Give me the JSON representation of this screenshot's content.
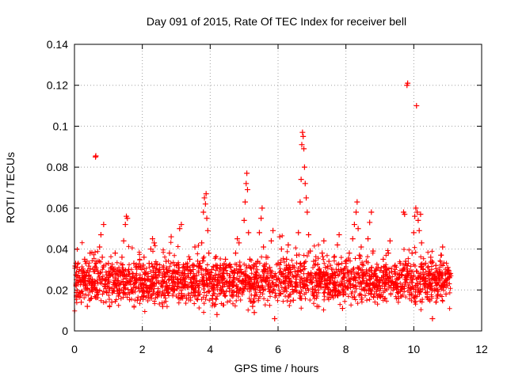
{
  "chart_data": {
    "type": "scatter",
    "title": "Day 091 of 2015, Rate Of TEC Index for receiver bell",
    "xlabel": "GPS time / hours",
    "ylabel": "ROTI / TECUs",
    "xlim": [
      0,
      12
    ],
    "ylim": [
      0,
      0.14
    ],
    "grid": true,
    "marker": "+",
    "color": "#ff0000",
    "xticks": [
      0,
      2,
      4,
      6,
      8,
      10,
      12
    ],
    "xtick_labels": [
      "0",
      "2",
      "4",
      "6",
      "8",
      "10",
      "12"
    ],
    "yticks": [
      0,
      0.02,
      0.04,
      0.06,
      0.08,
      0.1,
      0.12,
      0.14
    ],
    "ytick_labels": [
      "0",
      "0.02",
      "0.04",
      "0.06",
      "0.08",
      "0.1",
      "0.12",
      "0.14"
    ],
    "series": [
      {
        "name": "ROTI",
        "points": [
          [
            0.05,
            0.022
          ],
          [
            0.08,
            0.031
          ],
          [
            0.12,
            0.018
          ],
          [
            0.15,
            0.026
          ],
          [
            0.2,
            0.014
          ],
          [
            0.25,
            0.029
          ],
          [
            0.3,
            0.035
          ],
          [
            0.34,
            0.021
          ],
          [
            0.38,
            0.012
          ],
          [
            0.42,
            0.027
          ],
          [
            0.46,
            0.038
          ],
          [
            0.5,
            0.016
          ],
          [
            0.55,
            0.024
          ],
          [
            0.6,
            0.031
          ],
          [
            0.62,
            0.085
          ],
          [
            0.63,
            0.0855
          ],
          [
            0.66,
            0.02
          ],
          [
            0.7,
            0.028
          ],
          [
            0.74,
            0.041
          ],
          [
            0.78,
            0.047
          ],
          [
            0.82,
            0.036
          ],
          [
            0.86,
            0.052
          ],
          [
            0.9,
            0.023
          ],
          [
            0.95,
            0.019
          ],
          [
            1.0,
            0.033
          ],
          [
            1.05,
            0.027
          ],
          [
            1.1,
            0.014
          ],
          [
            1.15,
            0.03
          ],
          [
            1.2,
            0.038
          ],
          [
            1.25,
            0.022
          ],
          [
            1.3,
            0.017
          ],
          [
            1.35,
            0.029
          ],
          [
            1.4,
            0.036
          ],
          [
            1.45,
            0.044
          ],
          [
            1.5,
            0.052
          ],
          [
            1.53,
            0.056
          ],
          [
            1.56,
            0.055
          ],
          [
            1.6,
            0.03
          ],
          [
            1.65,
            0.024
          ],
          [
            1.7,
            0.02
          ],
          [
            1.75,
            0.033
          ],
          [
            1.8,
            0.027
          ],
          [
            1.85,
            0.015
          ],
          [
            1.9,
            0.025
          ],
          [
            1.95,
            0.031
          ],
          [
            2.0,
            0.019
          ],
          [
            2.05,
            0.036
          ],
          [
            2.1,
            0.028
          ],
          [
            2.15,
            0.021
          ],
          [
            2.2,
            0.033
          ],
          [
            2.25,
            0.04
          ],
          [
            2.3,
            0.045
          ],
          [
            2.35,
            0.043
          ],
          [
            2.4,
            0.026
          ],
          [
            2.45,
            0.018
          ],
          [
            2.5,
            0.03
          ],
          [
            2.55,
            0.023
          ],
          [
            2.6,
            0.012
          ],
          [
            2.65,
            0.027
          ],
          [
            2.7,
            0.034
          ],
          [
            2.75,
            0.021
          ],
          [
            2.8,
            0.038
          ],
          [
            2.85,
            0.046
          ],
          [
            2.9,
            0.029
          ],
          [
            2.95,
            0.02
          ],
          [
            3.0,
            0.032
          ],
          [
            3.05,
            0.025
          ],
          [
            3.1,
            0.05
          ],
          [
            3.15,
            0.052
          ],
          [
            3.2,
            0.031
          ],
          [
            3.25,
            0.024
          ],
          [
            3.3,
            0.016
          ],
          [
            3.35,
            0.028
          ],
          [
            3.4,
            0.035
          ],
          [
            3.45,
            0.022
          ],
          [
            3.5,
            0.03
          ],
          [
            3.55,
            0.041
          ],
          [
            3.6,
            0.027
          ],
          [
            3.65,
            0.019
          ],
          [
            3.7,
            0.033
          ],
          [
            3.75,
            0.043
          ],
          [
            3.8,
            0.058
          ],
          [
            3.83,
            0.065
          ],
          [
            3.86,
            0.062
          ],
          [
            3.88,
            0.067
          ],
          [
            3.9,
            0.055
          ],
          [
            3.93,
            0.049
          ],
          [
            3.96,
            0.038
          ],
          [
            4.0,
            0.026
          ],
          [
            4.05,
            0.03
          ],
          [
            4.1,
            0.02
          ],
          [
            4.15,
            0.013
          ],
          [
            4.2,
            0.008
          ],
          [
            4.25,
            0.024
          ],
          [
            4.3,
            0.032
          ],
          [
            4.35,
            0.027
          ],
          [
            4.4,
            0.019
          ],
          [
            4.45,
            0.035
          ],
          [
            4.5,
            0.028
          ],
          [
            4.55,
            0.022
          ],
          [
            4.6,
            0.031
          ],
          [
            4.65,
            0.017
          ],
          [
            4.7,
            0.025
          ],
          [
            4.75,
            0.038
          ],
          [
            4.8,
            0.045
          ],
          [
            4.85,
            0.043
          ],
          [
            4.9,
            0.03
          ],
          [
            4.95,
            0.024
          ],
          [
            5.0,
            0.054
          ],
          [
            5.03,
            0.063
          ],
          [
            5.06,
            0.072
          ],
          [
            5.08,
            0.077
          ],
          [
            5.1,
            0.069
          ],
          [
            5.13,
            0.048
          ],
          [
            5.17,
            0.035
          ],
          [
            5.2,
            0.021
          ],
          [
            5.25,
            0.012
          ],
          [
            5.3,
            0.009
          ],
          [
            5.35,
            0.027
          ],
          [
            5.4,
            0.034
          ],
          [
            5.45,
            0.048
          ],
          [
            5.5,
            0.055
          ],
          [
            5.53,
            0.06
          ],
          [
            5.57,
            0.041
          ],
          [
            5.6,
            0.029
          ],
          [
            5.65,
            0.036
          ],
          [
            5.7,
            0.022
          ],
          [
            5.75,
            0.031
          ],
          [
            5.8,
            0.044
          ],
          [
            5.85,
            0.049
          ],
          [
            5.9,
            0.006
          ],
          [
            5.95,
            0.025
          ],
          [
            6.0,
            0.033
          ],
          [
            6.05,
            0.046
          ],
          [
            6.1,
            0.04
          ],
          [
            6.15,
            0.028
          ],
          [
            6.2,
            0.02
          ],
          [
            6.25,
            0.035
          ],
          [
            6.3,
            0.042
          ],
          [
            6.35,
            0.031
          ],
          [
            6.4,
            0.024
          ],
          [
            6.45,
            0.015
          ],
          [
            6.5,
            0.029
          ],
          [
            6.55,
            0.037
          ],
          [
            6.6,
            0.048
          ],
          [
            6.65,
            0.063
          ],
          [
            6.68,
            0.074
          ],
          [
            6.7,
            0.091
          ],
          [
            6.72,
            0.097
          ],
          [
            6.74,
            0.095
          ],
          [
            6.76,
            0.089
          ],
          [
            6.78,
            0.08
          ],
          [
            6.8,
            0.072
          ],
          [
            6.83,
            0.065
          ],
          [
            6.86,
            0.058
          ],
          [
            6.9,
            0.047
          ],
          [
            6.95,
            0.039
          ],
          [
            7.0,
            0.027
          ],
          [
            7.05,
            0.034
          ],
          [
            7.1,
            0.02
          ],
          [
            7.15,
            0.012
          ],
          [
            7.2,
            0.03
          ],
          [
            7.25,
            0.023
          ],
          [
            7.3,
            0.038
          ],
          [
            7.35,
            0.044
          ],
          [
            7.4,
            0.031
          ],
          [
            7.45,
            0.025
          ],
          [
            7.5,
            0.034
          ],
          [
            7.55,
            0.019
          ],
          [
            7.6,
            0.028
          ],
          [
            7.65,
            0.036
          ],
          [
            7.7,
            0.022
          ],
          [
            7.75,
            0.042
          ],
          [
            7.8,
            0.047
          ],
          [
            7.85,
            0.03
          ],
          [
            7.9,
            0.011
          ],
          [
            7.95,
            0.026
          ],
          [
            8.0,
            0.033
          ],
          [
            8.05,
            0.021
          ],
          [
            8.1,
            0.038
          ],
          [
            8.15,
            0.029
          ],
          [
            8.2,
            0.045
          ],
          [
            8.25,
            0.052
          ],
          [
            8.3,
            0.058
          ],
          [
            8.33,
            0.063
          ],
          [
            8.36,
            0.05
          ],
          [
            8.4,
            0.037
          ],
          [
            8.45,
            0.041
          ],
          [
            8.5,
            0.027
          ],
          [
            8.55,
            0.02
          ],
          [
            8.6,
            0.034
          ],
          [
            8.65,
            0.045
          ],
          [
            8.7,
            0.053
          ],
          [
            8.75,
            0.058
          ],
          [
            8.8,
            0.039
          ],
          [
            8.85,
            0.028
          ],
          [
            8.9,
            0.022
          ],
          [
            8.95,
            0.031
          ],
          [
            9.0,
            0.017
          ],
          [
            9.05,
            0.026
          ],
          [
            9.1,
            0.035
          ],
          [
            9.15,
            0.023
          ],
          [
            9.2,
            0.03
          ],
          [
            9.25,
            0.038
          ],
          [
            9.3,
            0.044
          ],
          [
            9.35,
            0.029
          ],
          [
            9.4,
            0.021
          ],
          [
            9.45,
            0.032
          ],
          [
            9.5,
            0.025
          ],
          [
            9.55,
            0.016
          ],
          [
            9.6,
            0.033
          ],
          [
            9.65,
            0.027
          ],
          [
            9.7,
            0.058
          ],
          [
            9.73,
            0.057
          ],
          [
            9.76,
            0.034
          ],
          [
            9.8,
            0.12
          ],
          [
            9.82,
            0.121
          ],
          [
            9.85,
            0.028
          ],
          [
            9.9,
            0.021
          ],
          [
            9.95,
            0.038
          ],
          [
            10.0,
            0.048
          ],
          [
            10.03,
            0.056
          ],
          [
            10.06,
            0.06
          ],
          [
            10.08,
            0.11
          ],
          [
            10.1,
            0.058
          ],
          [
            10.13,
            0.054
          ],
          [
            10.16,
            0.049
          ],
          [
            10.2,
            0.057
          ],
          [
            10.23,
            0.043
          ],
          [
            10.27,
            0.03
          ],
          [
            10.3,
            0.023
          ],
          [
            10.35,
            0.033
          ],
          [
            10.4,
            0.019
          ],
          [
            10.45,
            0.028
          ],
          [
            10.5,
            0.036
          ],
          [
            10.55,
            0.006
          ],
          [
            10.6,
            0.025
          ],
          [
            10.65,
            0.032
          ],
          [
            10.7,
            0.02
          ],
          [
            10.75,
            0.029
          ],
          [
            10.8,
            0.037
          ],
          [
            10.85,
            0.041
          ],
          [
            10.9,
            0.024
          ],
          [
            10.95,
            0.018
          ],
          [
            11.0,
            0.031
          ],
          [
            11.05,
            0.026
          ]
        ]
      }
    ],
    "band": {
      "x_start": 0.0,
      "x_end": 11.1,
      "typical_min": 0.012,
      "typical_max": 0.032,
      "density_points": 2200
    }
  }
}
